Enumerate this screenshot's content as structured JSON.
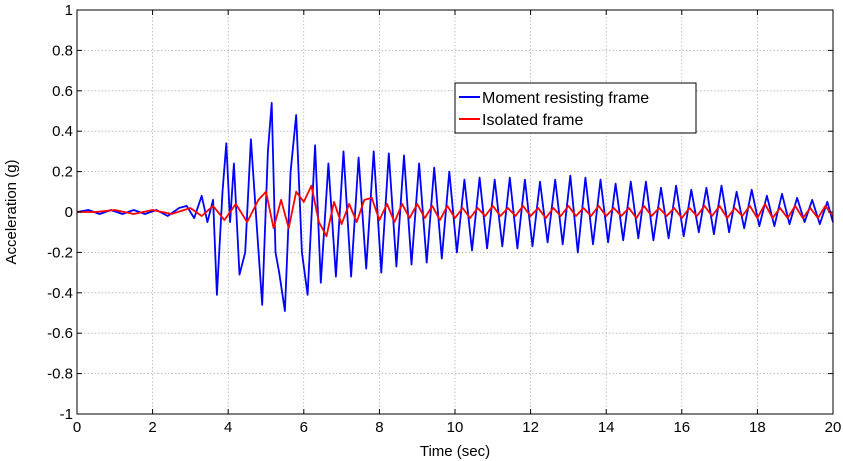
{
  "chart_data": {
    "type": "line",
    "title": "",
    "xlabel": "Time (sec)",
    "ylabel": "Acceleration (g)",
    "xlim": [
      0,
      20
    ],
    "ylim": [
      -1,
      1
    ],
    "x_ticks": [
      0,
      2,
      4,
      6,
      8,
      10,
      12,
      14,
      16,
      18,
      20
    ],
    "y_ticks": [
      -1,
      -0.8,
      -0.6,
      -0.4,
      -0.2,
      0,
      0.2,
      0.4,
      0.6,
      0.8,
      1
    ],
    "x_tick_labels": [
      "0",
      "2",
      "4",
      "6",
      "8",
      "10",
      "12",
      "14",
      "16",
      "18",
      "20"
    ],
    "y_tick_labels": [
      "-1",
      "-0.8",
      "-0.6",
      "-0.4",
      "-0.2",
      "0",
      "0.2",
      "0.4",
      "0.6",
      "0.8",
      "1"
    ],
    "grid": true,
    "legend_position": "top-right",
    "series": [
      {
        "name": "Moment resisting frame",
        "color": "#0000ff",
        "x": [
          0,
          0.3,
          0.6,
          0.9,
          1.2,
          1.5,
          1.8,
          2.1,
          2.4,
          2.7,
          2.9,
          3.1,
          3.3,
          3.45,
          3.6,
          3.7,
          3.85,
          3.95,
          4.05,
          4.15,
          4.3,
          4.45,
          4.6,
          4.75,
          4.9,
          5.05,
          5.15,
          5.25,
          5.35,
          5.5,
          5.65,
          5.8,
          5.95,
          6.1,
          6.3,
          6.45,
          6.65,
          6.85,
          7.05,
          7.25,
          7.45,
          7.65,
          7.85,
          8.05,
          8.25,
          8.45,
          8.65,
          8.85,
          9.05,
          9.25,
          9.45,
          9.65,
          9.85,
          10.05,
          10.25,
          10.45,
          10.65,
          10.85,
          11.05,
          11.25,
          11.45,
          11.65,
          11.85,
          12.05,
          12.25,
          12.45,
          12.65,
          12.85,
          13.05,
          13.25,
          13.45,
          13.65,
          13.85,
          14.05,
          14.25,
          14.45,
          14.65,
          14.85,
          15.05,
          15.25,
          15.45,
          15.65,
          15.85,
          16.05,
          16.25,
          16.45,
          16.65,
          16.85,
          17.05,
          17.25,
          17.45,
          17.65,
          17.85,
          18.05,
          18.25,
          18.45,
          18.65,
          18.85,
          19.05,
          19.25,
          19.45,
          19.65,
          19.85,
          20
        ],
        "y": [
          0.0,
          0.01,
          -0.01,
          0.01,
          -0.01,
          0.01,
          -0.01,
          0.01,
          -0.02,
          0.02,
          0.03,
          -0.03,
          0.08,
          -0.05,
          0.06,
          -0.41,
          0.1,
          0.34,
          -0.05,
          0.24,
          -0.31,
          -0.2,
          0.36,
          -0.05,
          -0.46,
          0.3,
          0.54,
          -0.2,
          -0.3,
          -0.49,
          0.2,
          0.48,
          -0.2,
          -0.41,
          0.33,
          -0.35,
          0.24,
          -0.32,
          0.3,
          -0.32,
          0.27,
          -0.28,
          0.3,
          -0.3,
          0.29,
          -0.27,
          0.28,
          -0.26,
          0.24,
          -0.25,
          0.22,
          -0.23,
          0.2,
          -0.2,
          0.16,
          -0.19,
          0.17,
          -0.18,
          0.16,
          -0.17,
          0.17,
          -0.18,
          0.16,
          -0.17,
          0.15,
          -0.15,
          0.16,
          -0.16,
          0.18,
          -0.2,
          0.17,
          -0.16,
          0.16,
          -0.15,
          0.14,
          -0.14,
          0.15,
          -0.13,
          0.15,
          -0.14,
          0.12,
          -0.13,
          0.13,
          -0.12,
          0.11,
          -0.1,
          0.12,
          -0.11,
          0.13,
          -0.1,
          0.1,
          -0.08,
          0.11,
          -0.07,
          0.08,
          -0.07,
          0.09,
          -0.06,
          0.07,
          -0.05,
          0.06,
          -0.06,
          0.05,
          -0.05
        ]
      },
      {
        "name": "Isolated frame",
        "color": "#ff0000",
        "x": [
          0,
          0.5,
          1.0,
          1.5,
          2.0,
          2.5,
          3.0,
          3.3,
          3.6,
          3.9,
          4.2,
          4.5,
          4.8,
          5.0,
          5.2,
          5.4,
          5.6,
          5.8,
          6.0,
          6.2,
          6.4,
          6.6,
          6.8,
          7.0,
          7.2,
          7.4,
          7.6,
          7.8,
          8.0,
          8.2,
          8.4,
          8.6,
          8.8,
          9.0,
          9.2,
          9.4,
          9.6,
          9.8,
          10.0,
          10.2,
          10.4,
          10.6,
          10.8,
          11.0,
          11.2,
          11.4,
          11.6,
          11.8,
          12.0,
          12.2,
          12.4,
          12.6,
          12.8,
          13.0,
          13.2,
          13.4,
          13.6,
          13.8,
          14.0,
          14.2,
          14.4,
          14.6,
          14.8,
          15.0,
          15.2,
          15.4,
          15.6,
          15.8,
          16.0,
          16.2,
          16.4,
          16.6,
          16.8,
          17.0,
          17.2,
          17.4,
          17.6,
          17.8,
          18.0,
          18.2,
          18.4,
          18.6,
          18.8,
          19.0,
          19.2,
          19.4,
          19.6,
          19.8,
          20
        ],
        "y": [
          0.0,
          0.0,
          0.01,
          -0.01,
          0.01,
          -0.01,
          0.02,
          -0.02,
          0.03,
          -0.04,
          0.04,
          -0.05,
          0.06,
          0.1,
          -0.08,
          0.06,
          -0.08,
          0.1,
          0.05,
          0.13,
          -0.05,
          -0.12,
          0.05,
          -0.06,
          0.04,
          -0.05,
          0.06,
          0.07,
          -0.04,
          0.04,
          -0.05,
          0.04,
          -0.03,
          0.04,
          -0.03,
          0.03,
          -0.04,
          0.03,
          -0.03,
          0.02,
          -0.03,
          0.02,
          -0.02,
          0.03,
          -0.02,
          0.02,
          -0.02,
          0.03,
          -0.02,
          0.02,
          -0.03,
          0.02,
          -0.02,
          0.03,
          -0.02,
          0.02,
          -0.02,
          0.03,
          -0.02,
          0.02,
          -0.02,
          0.02,
          -0.03,
          0.03,
          -0.02,
          0.02,
          -0.02,
          0.02,
          -0.03,
          0.02,
          -0.02,
          0.03,
          -0.02,
          0.03,
          -0.03,
          0.02,
          -0.02,
          0.03,
          -0.03,
          0.04,
          -0.03,
          0.02,
          -0.03,
          0.03,
          -0.03,
          0.02,
          -0.03,
          0.03,
          -0.02
        ]
      }
    ]
  }
}
